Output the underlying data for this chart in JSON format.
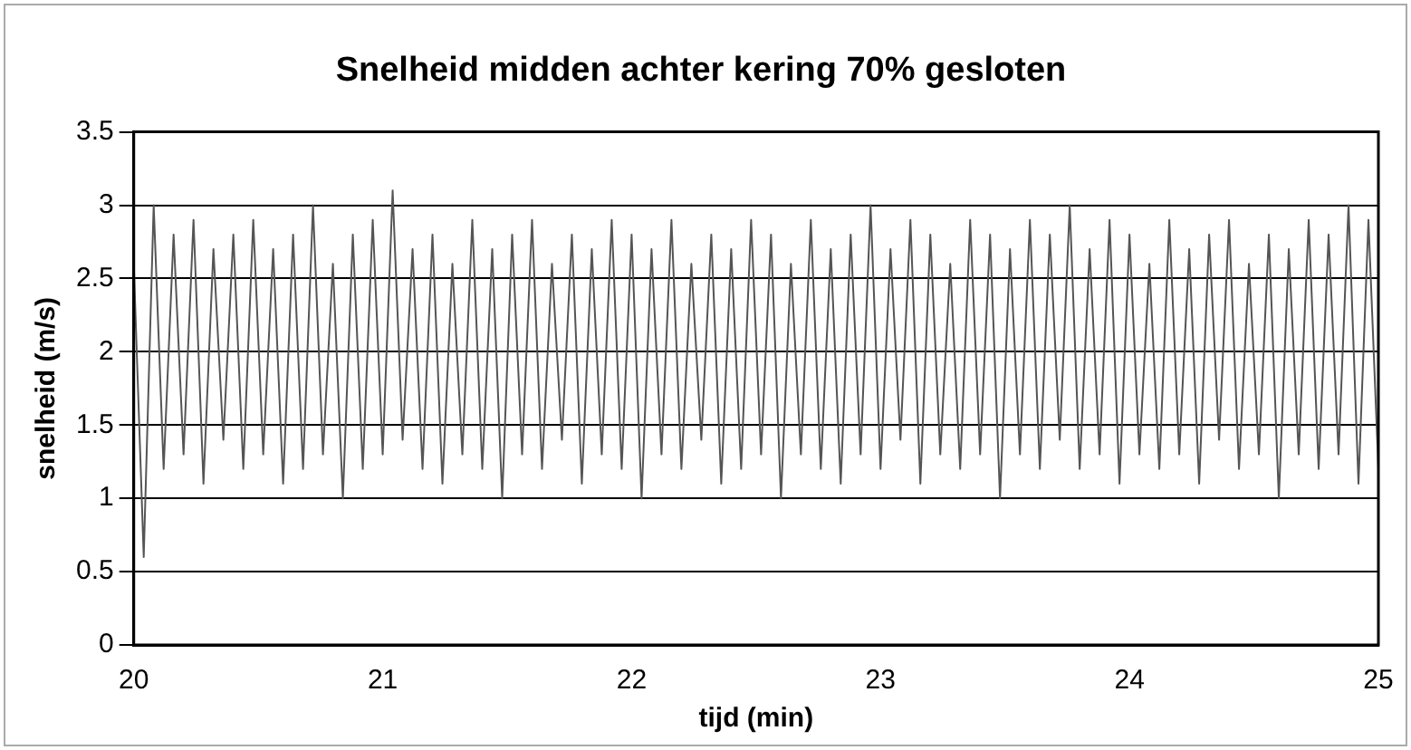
{
  "chart_data": {
    "type": "line",
    "title": "Snelheid midden achter kering 70% gesloten",
    "xlabel": "tijd (min)",
    "ylabel": "snelheid (m/s)",
    "xlim": [
      20,
      25
    ],
    "xticks": [
      20,
      21,
      22,
      23,
      24,
      25
    ],
    "ylim": [
      0,
      3.5
    ],
    "yticks": [
      0,
      0.5,
      1,
      1.5,
      2,
      2.5,
      3,
      3.5
    ],
    "grid": "y",
    "legend": false,
    "marker": "none",
    "line_style": "solid",
    "series": [
      {
        "color": "#555555",
        "x": [
          20.0,
          20.04,
          20.08,
          20.12,
          20.16,
          20.2,
          20.24,
          20.28,
          20.32,
          20.36,
          20.4,
          20.44,
          20.48,
          20.52,
          20.56,
          20.6,
          20.64,
          20.68,
          20.72,
          20.76,
          20.8,
          20.84,
          20.88,
          20.92,
          20.96,
          21.0,
          21.04,
          21.08,
          21.12,
          21.16,
          21.2,
          21.24,
          21.28,
          21.32,
          21.36,
          21.4,
          21.44,
          21.48,
          21.52,
          21.56,
          21.6,
          21.64,
          21.68,
          21.72,
          21.76,
          21.8,
          21.84,
          21.88,
          21.92,
          21.96,
          22.0,
          22.04,
          22.08,
          22.12,
          22.16,
          22.2,
          22.24,
          22.28,
          22.32,
          22.36,
          22.4,
          22.44,
          22.48,
          22.52,
          22.56,
          22.6,
          22.64,
          22.68,
          22.72,
          22.76,
          22.8,
          22.84,
          22.88,
          22.92,
          22.96,
          23.0,
          23.04,
          23.08,
          23.12,
          23.16,
          23.2,
          23.24,
          23.28,
          23.32,
          23.36,
          23.4,
          23.44,
          23.48,
          23.52,
          23.56,
          23.6,
          23.64,
          23.68,
          23.72,
          23.76,
          23.8,
          23.84,
          23.88,
          23.92,
          23.96,
          24.0,
          24.04,
          24.08,
          24.12,
          24.16,
          24.2,
          24.24,
          24.28,
          24.32,
          24.36,
          24.4,
          24.44,
          24.48,
          24.52,
          24.56,
          24.6,
          24.64,
          24.68,
          24.72,
          24.76,
          24.8,
          24.84,
          24.88,
          24.92,
          24.96,
          25.0
        ],
        "values": [
          2.6,
          0.6,
          3.0,
          1.2,
          2.8,
          1.3,
          2.9,
          1.1,
          2.7,
          1.4,
          2.8,
          1.2,
          2.9,
          1.3,
          2.7,
          1.1,
          2.8,
          1.2,
          3.0,
          1.3,
          2.6,
          1.0,
          2.8,
          1.2,
          2.9,
          1.3,
          3.1,
          1.4,
          2.7,
          1.2,
          2.8,
          1.1,
          2.6,
          1.3,
          2.9,
          1.2,
          2.7,
          1.0,
          2.8,
          1.3,
          2.9,
          1.2,
          2.6,
          1.4,
          2.8,
          1.1,
          2.7,
          1.3,
          2.9,
          1.2,
          2.8,
          1.0,
          2.7,
          1.3,
          2.9,
          1.2,
          2.6,
          1.4,
          2.8,
          1.1,
          2.7,
          1.2,
          2.9,
          1.3,
          2.8,
          1.0,
          2.6,
          1.3,
          2.9,
          1.2,
          2.7,
          1.1,
          2.8,
          1.3,
          3.0,
          1.2,
          2.7,
          1.4,
          2.9,
          1.1,
          2.8,
          1.3,
          2.6,
          1.2,
          2.9,
          1.3,
          2.8,
          1.0,
          2.7,
          1.3,
          2.9,
          1.2,
          2.8,
          1.4,
          3.0,
          1.2,
          2.7,
          1.3,
          2.9,
          1.1,
          2.8,
          1.3,
          2.6,
          1.2,
          2.9,
          1.3,
          2.7,
          1.1,
          2.8,
          1.4,
          2.9,
          1.2,
          2.6,
          1.3,
          2.8,
          1.0,
          2.7,
          1.3,
          2.9,
          1.2,
          2.8,
          1.3,
          3.0,
          1.1,
          2.9,
          1.2
        ]
      }
    ]
  }
}
